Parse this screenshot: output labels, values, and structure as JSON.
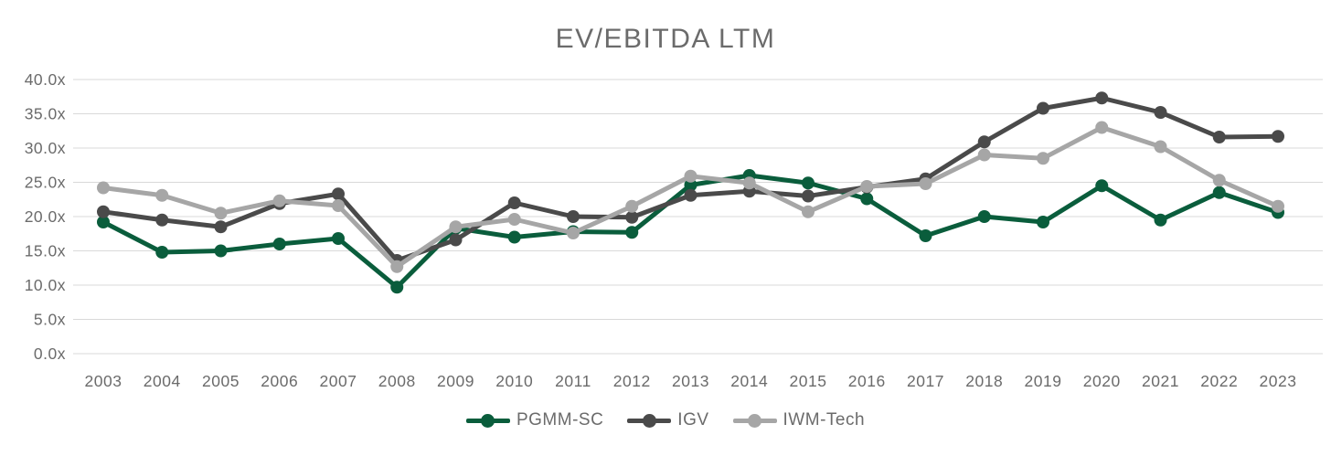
{
  "title": "EV/EBITDA LTM",
  "colors": {
    "pgmm_green": "#0a5d3c",
    "igv_dark_gray": "#4a4a4a",
    "iwm_light_gray": "#a6a6a6",
    "gridline": "#d9d9d9",
    "axis_text": "#6b6b6b"
  },
  "chart_data": {
    "type": "line",
    "title": "EV/EBITDA LTM",
    "x": [
      2003,
      2004,
      2005,
      2006,
      2007,
      2008,
      2009,
      2010,
      2011,
      2012,
      2013,
      2014,
      2015,
      2016,
      2017,
      2018,
      2019,
      2020,
      2021,
      2022,
      2023
    ],
    "series": [
      {
        "name": "PGMM-SC",
        "color": "#0a5d3c",
        "values": [
          19.2,
          14.8,
          15.0,
          16.0,
          16.8,
          9.7,
          18.3,
          17.0,
          17.8,
          17.7,
          24.6,
          26.0,
          24.9,
          22.6,
          17.2,
          20.0,
          19.2,
          24.5,
          19.5,
          23.5,
          20.6
        ]
      },
      {
        "name": "IGV",
        "color": "#4a4a4a",
        "values": [
          20.7,
          19.5,
          18.5,
          21.9,
          23.3,
          13.6,
          16.6,
          22.0,
          20.0,
          19.9,
          23.1,
          23.7,
          23.0,
          24.3,
          25.5,
          30.9,
          35.8,
          37.3,
          35.2,
          31.6,
          31.7
        ]
      },
      {
        "name": "IWM-Tech",
        "color": "#a6a6a6",
        "values": [
          24.2,
          23.1,
          20.5,
          22.3,
          21.6,
          12.7,
          18.5,
          19.6,
          17.6,
          21.5,
          25.9,
          24.9,
          20.7,
          24.4,
          24.8,
          29.0,
          28.5,
          33.0,
          30.2,
          25.3,
          21.5
        ]
      }
    ],
    "ylim": [
      0,
      40
    ],
    "ytick_step": 5,
    "ytick_labels": [
      "0.0x",
      "5.0x",
      "10.0x",
      "15.0x",
      "20.0x",
      "25.0x",
      "30.0x",
      "35.0x",
      "40.0x"
    ],
    "grid": "horizontal",
    "legend_position": "bottom"
  }
}
